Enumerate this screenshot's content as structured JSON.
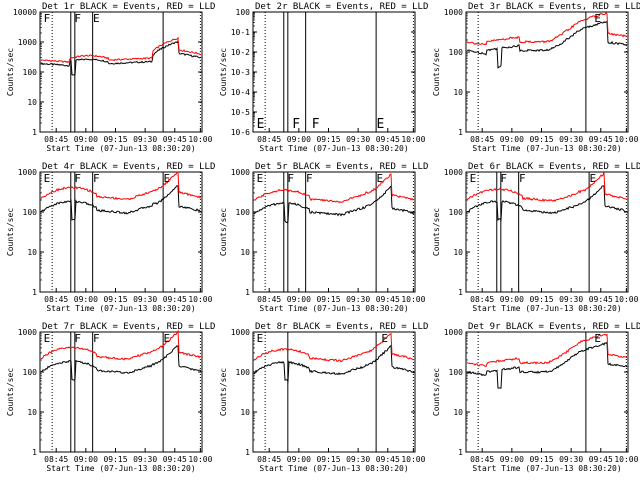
{
  "colors": {
    "events": "#000000",
    "lld": "#ff0000",
    "background": "#ffffff",
    "axes": "#000000"
  },
  "chart_data": [
    {
      "type": "line",
      "title": "Det 1r BLACK = Events, RED = LLD",
      "ylabel": "Counts/sec",
      "xlabel": "Start Time (07-Jun-13 08:30:20)",
      "yscale": "log",
      "ylim": [
        1,
        10000
      ],
      "ytick_labels": [
        "1",
        "10",
        "100",
        "1000",
        "10000"
      ],
      "xtick_labels": [
        "08:45",
        "09:00",
        "09:15",
        "09:30",
        "09:45",
        "10:00"
      ],
      "series": [
        {
          "name": "Events",
          "color": "#000000",
          "profile": "lowshelf",
          "base": 190
        },
        {
          "name": "LLD",
          "color": "#ff0000",
          "profile": "lowshelf",
          "base": 250
        }
      ],
      "markers": [
        {
          "label": "F"
        },
        {
          "label": "F"
        },
        {
          "label": "E"
        }
      ]
    },
    {
      "type": "line",
      "title": "Det 2r BLACK = Events, RED = LLD",
      "ylabel": "Counts/sec",
      "xlabel": "Start Time (07-Jun-13 08:30:20)",
      "yscale": "log",
      "ylim": [
        1e-06,
        1
      ],
      "ytick_labels": [
        "10-6",
        "10-5",
        "10-4",
        "10-3",
        "10-2",
        "10-1",
        "100"
      ],
      "xtick_labels": [
        "08:45",
        "09:00",
        "09:15",
        "09:30",
        "09:45",
        "10:00"
      ],
      "series": [],
      "markers": [
        {
          "label": "E"
        },
        {
          "label": "F"
        },
        {
          "label": "F"
        },
        {
          "label": "E"
        }
      ]
    },
    {
      "type": "line",
      "title": "Det 3r BLACK = Events, RED = LLD",
      "ylabel": "Counts/sec",
      "xlabel": "Start Time (07-Jun-13 08:30:20)",
      "yscale": "log",
      "ylim": [
        1,
        1000
      ],
      "ytick_labels": [
        "1",
        "10",
        "100",
        "1000"
      ],
      "xtick_labels": [
        "08:45",
        "09:00",
        "09:15",
        "09:30",
        "09:45",
        "10:00"
      ],
      "series": [
        {
          "name": "Events",
          "color": "#000000",
          "profile": "smile",
          "base": 110
        },
        {
          "name": "LLD",
          "color": "#ff0000",
          "profile": "smile",
          "base": 180
        }
      ],
      "markers": [
        {
          "label": "E"
        }
      ]
    },
    {
      "type": "line",
      "title": "Det 4r BLACK = Events, RED = LLD",
      "ylabel": "Counts/sec",
      "xlabel": "Start Time (07-Jun-13 08:30:20)",
      "yscale": "log",
      "ylim": [
        1,
        1000
      ],
      "ytick_labels": [
        "1",
        "10",
        "100",
        "1000"
      ],
      "xtick_labels": [
        "08:45",
        "09:00",
        "09:15",
        "09:30",
        "09:45",
        "10:00"
      ],
      "series": [
        {
          "name": "Events",
          "color": "#000000",
          "profile": "hump",
          "base": 100
        },
        {
          "name": "LLD",
          "color": "#ff0000",
          "profile": "hump",
          "base": 220
        }
      ],
      "markers": [
        {
          "label": "E"
        },
        {
          "label": "F"
        },
        {
          "label": "F"
        },
        {
          "label": "E"
        }
      ]
    },
    {
      "type": "line",
      "title": "Det 5r BLACK = Events, RED = LLD",
      "ylabel": "Counts/sec",
      "xlabel": "Start Time (07-Jun-13 08:30:20)",
      "yscale": "log",
      "ylim": [
        1,
        1000
      ],
      "ytick_labels": [
        "1",
        "10",
        "100",
        "1000"
      ],
      "xtick_labels": [
        "08:45",
        "09:00",
        "09:15",
        "09:30",
        "09:45",
        "10:00"
      ],
      "series": [
        {
          "name": "Events",
          "color": "#000000",
          "profile": "hump",
          "base": 90
        },
        {
          "name": "LLD",
          "color": "#ff0000",
          "profile": "hump",
          "base": 190
        }
      ],
      "markers": [
        {
          "label": "E"
        },
        {
          "label": "F"
        },
        {
          "label": "F"
        },
        {
          "label": "E"
        }
      ]
    },
    {
      "type": "line",
      "title": "Det 6r BLACK = Events, RED = LLD",
      "ylabel": "Counts/sec",
      "xlabel": "Start Time (07-Jun-13 08:30:20)",
      "yscale": "log",
      "ylim": [
        1,
        1000
      ],
      "ytick_labels": [
        "1",
        "10",
        "100",
        "1000"
      ],
      "xtick_labels": [
        "08:45",
        "09:00",
        "09:15",
        "09:30",
        "09:45",
        "10:00"
      ],
      "series": [
        {
          "name": "Events",
          "color": "#000000",
          "profile": "hump",
          "base": 100
        },
        {
          "name": "LLD",
          "color": "#ff0000",
          "profile": "hump",
          "base": 200
        }
      ],
      "markers": [
        {
          "label": "E"
        },
        {
          "label": "F"
        },
        {
          "label": "F"
        },
        {
          "label": "E"
        }
      ]
    },
    {
      "type": "line",
      "title": "Det 7r BLACK = Events, RED = LLD",
      "ylabel": "Counts/sec",
      "xlabel": "Start Time (07-Jun-13 08:30:20)",
      "yscale": "log",
      "ylim": [
        1,
        1000
      ],
      "ytick_labels": [
        "1",
        "10",
        "100",
        "1000"
      ],
      "xtick_labels": [
        "08:45",
        "09:00",
        "09:15",
        "09:30",
        "09:45",
        "10:00"
      ],
      "series": [
        {
          "name": "Events",
          "color": "#000000",
          "profile": "hump",
          "base": 100
        },
        {
          "name": "LLD",
          "color": "#ff0000",
          "profile": "hump",
          "base": 220
        }
      ],
      "markers": [
        {
          "label": "E"
        },
        {
          "label": "F"
        },
        {
          "label": "F"
        },
        {
          "label": "E"
        }
      ]
    },
    {
      "type": "line",
      "title": "Det 8r BLACK = Events, RED = LLD",
      "ylabel": "Counts/sec",
      "xlabel": "Start Time (07-Jun-13 08:30:20)",
      "yscale": "log",
      "ylim": [
        1,
        1000
      ],
      "ytick_labels": [
        "1",
        "10",
        "100",
        "1000"
      ],
      "xtick_labels": [
        "08:45",
        "09:00",
        "09:15",
        "09:30",
        "09:45",
        "10:00"
      ],
      "series": [
        {
          "name": "Events",
          "color": "#000000",
          "profile": "hump",
          "base": 95
        },
        {
          "name": "LLD",
          "color": "#ff0000",
          "profile": "hump",
          "base": 200
        }
      ],
      "markers": [
        {
          "label": "E"
        },
        {
          "label": "E"
        }
      ]
    },
    {
      "type": "line",
      "title": "Det 9r BLACK = Events, RED = LLD",
      "ylabel": "Counts/sec",
      "xlabel": "Start Time (07-Jun-13 08:30:20)",
      "yscale": "log",
      "ylim": [
        1,
        1000
      ],
      "ytick_labels": [
        "1",
        "10",
        "100",
        "1000"
      ],
      "xtick_labels": [
        "08:45",
        "09:00",
        "09:15",
        "09:30",
        "09:45",
        "10:00"
      ],
      "series": [
        {
          "name": "Events",
          "color": "#000000",
          "profile": "smile",
          "base": 100
        },
        {
          "name": "LLD",
          "color": "#ff0000",
          "profile": "smile",
          "base": 170
        }
      ],
      "markers": [
        {
          "label": "E"
        }
      ]
    }
  ]
}
